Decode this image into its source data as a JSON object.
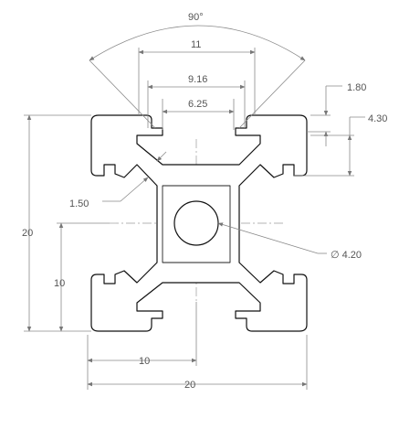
{
  "dimensions": {
    "angle": "90°",
    "width_11": "11",
    "width_9_16": "9.16",
    "width_6_25": "6.25",
    "depth_1_80": "1.80",
    "depth_4_30": "4.30",
    "thickness_1_50": "1.50",
    "bore_diameter": "∅ 4.20",
    "height_20": "20",
    "height_10": "10",
    "bottom_10": "10",
    "bottom_20": "20"
  }
}
